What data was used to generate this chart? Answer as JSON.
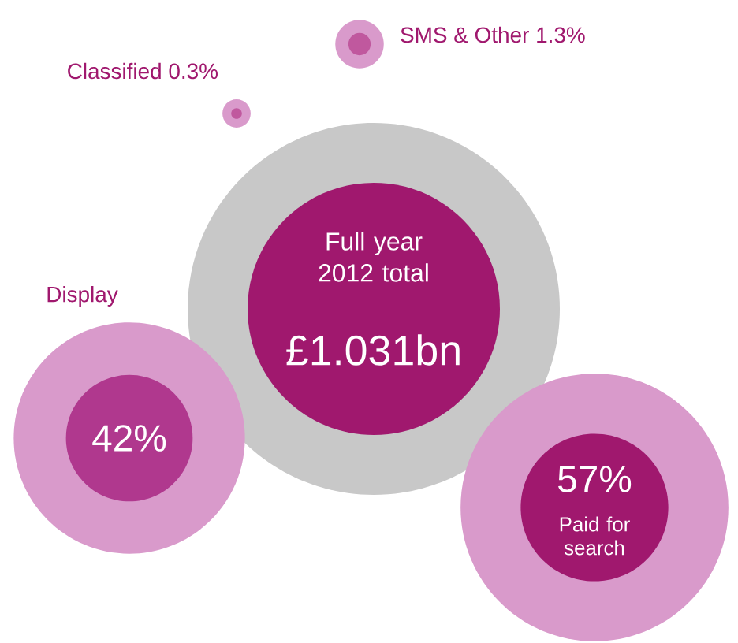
{
  "chart_data": {
    "type": "other",
    "title": "Full year 2012 total",
    "subtitle": "£1.031bn",
    "categories": [
      "Display",
      "Paid for search",
      "Classified",
      "SMS & Other"
    ],
    "values": [
      42,
      57,
      0.3,
      1.3
    ],
    "value_labels": [
      "42%",
      "57%",
      "0.3%",
      "1.3%"
    ],
    "colors": [
      "#b0388e",
      "#a0186e",
      "#c0589e",
      "#c0589e"
    ]
  }
}
